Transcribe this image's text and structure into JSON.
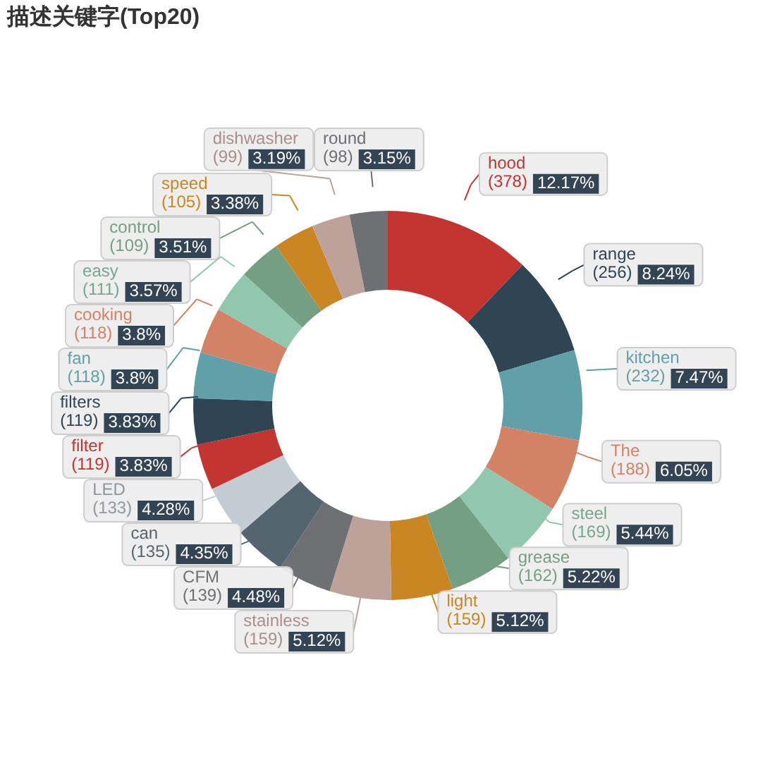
{
  "chart_data": {
    "type": "donut",
    "title": "描述关键字(Top20)",
    "categories": [
      "hood",
      "range",
      "kitchen",
      "The",
      "steel",
      "grease",
      "light",
      "stainless",
      "CFM",
      "can",
      "LED",
      "filter",
      "filters",
      "fan",
      "cooking",
      "easy",
      "control",
      "speed",
      "dishwasher",
      "round"
    ],
    "values": [
      378,
      256,
      232,
      188,
      169,
      162,
      159,
      159,
      139,
      135,
      133,
      119,
      119,
      118,
      118,
      111,
      109,
      105,
      99,
      98
    ],
    "colors": [
      "#c23531",
      "#2f4554",
      "#61a0a8",
      "#d48265",
      "#91c7ae",
      "#749f83",
      "#ca8622",
      "#bda29a",
      "#6e7074",
      "#546570",
      "#c4ccd3",
      "#c23531",
      "#2f4554",
      "#61a0a8",
      "#d48265",
      "#91c7ae",
      "#749f83",
      "#ca8622",
      "#bda29a",
      "#6e7074"
    ],
    "value_labels": [
      "(378) 12.17%",
      "(256) 8.24%",
      "(232) 7.47%",
      "(188) 6.05%",
      "(169) 5.44%",
      "(162) 5.22%",
      "(159) 5.12%",
      "(159) 5.12%",
      "(139) 4.48%",
      "(135) 4.35%",
      "(133) 4.28%",
      "(119) 3.83%",
      "(119) 3.83%",
      "(118) 3.8%",
      "(118) 3.8%",
      "(111) 3.57%",
      "(109) 3.51%",
      "(105) 3.38%",
      "(99) 3.19%",
      "(98) 3.15%"
    ]
  }
}
